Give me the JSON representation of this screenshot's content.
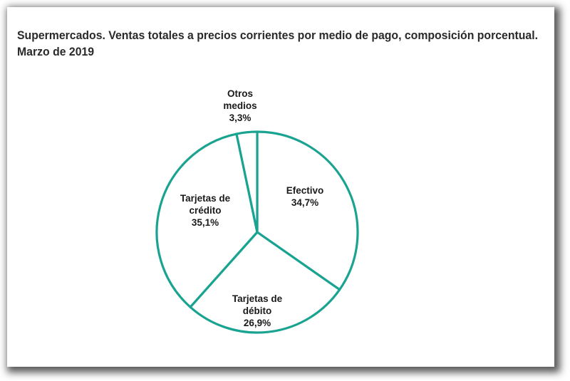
{
  "chart_data": {
    "type": "pie",
    "title": "Supermercados. Ventas totales a precios corrientes por medio de pago, composición porcentual.",
    "subtitle": "Marzo de  2019",
    "slices": [
      {
        "name": "Efectivo",
        "label_lines": [
          "Efectivo"
        ],
        "value": 34.7,
        "value_label": "34,7%"
      },
      {
        "name": "Tarjetas de débito",
        "label_lines": [
          "Tarjetas de",
          "débito"
        ],
        "value": 26.9,
        "value_label": "26,9%"
      },
      {
        "name": "Tarjetas de crédito",
        "label_lines": [
          "Tarjetas de",
          "crédito"
        ],
        "value": 35.1,
        "value_label": "35,1%"
      },
      {
        "name": "Otros medios",
        "label_lines": [
          "Otros",
          "medios"
        ],
        "value": 3.3,
        "value_label": "3,3%"
      }
    ],
    "colors": {
      "stroke": "#1aa391",
      "fill": "#ffffff",
      "text": "#1a1a1a"
    }
  }
}
